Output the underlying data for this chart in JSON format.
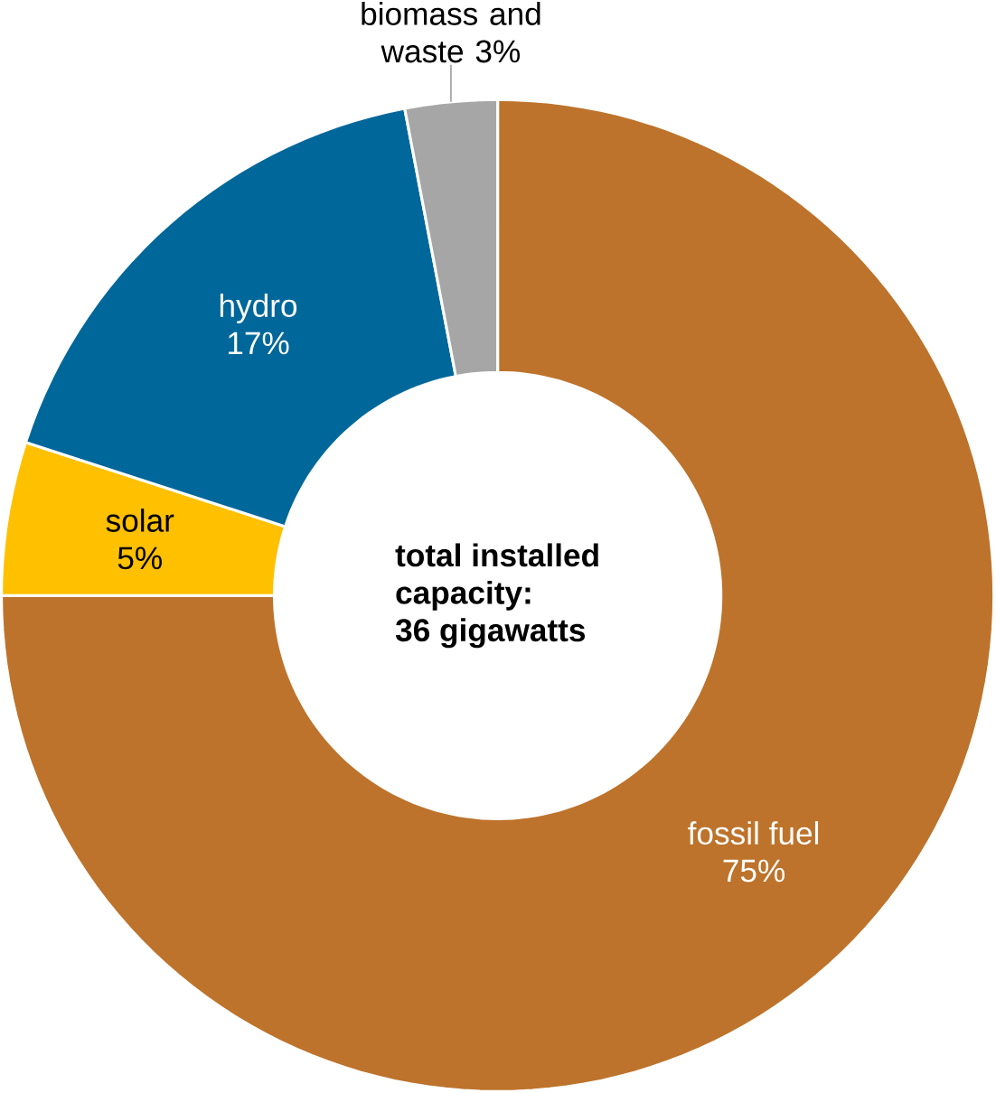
{
  "chart_data": {
    "type": "donut",
    "categories": [
      "fossil fuel",
      "solar",
      "hydro",
      "biomass and waste"
    ],
    "values": [
      75,
      5,
      17,
      3
    ],
    "value_labels": [
      "75%",
      "5%",
      "17%",
      "3%"
    ],
    "colors": [
      "#bd732b",
      "#ffc000",
      "#00679a",
      "#a6a6a6"
    ],
    "annotations": [
      "total installed",
      "capacity:",
      "36 gigawatts"
    ]
  }
}
